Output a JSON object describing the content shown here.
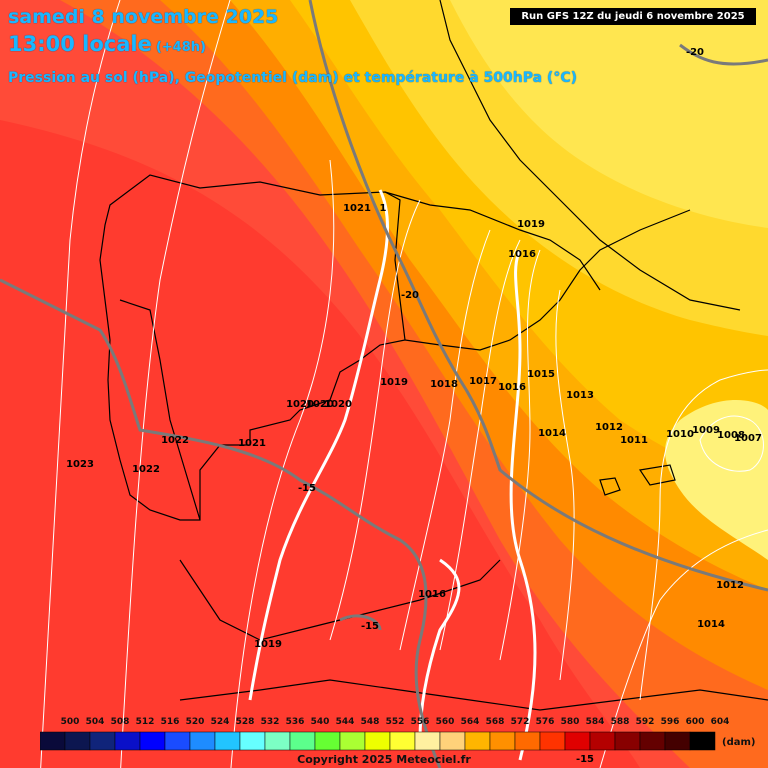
{
  "header": {
    "date": "samedi 8 novembre 2025",
    "time": "13:00 locale",
    "step": "(+48h)",
    "subtitle": "Pression au sol (hPa), Geopotentiel (dam) et température à 500hPa (°C)",
    "run": "Run GFS 12Z du jeudi 6 novembre 2025"
  },
  "pressure_labels": [
    "1021",
    "1",
    "1019",
    "1016",
    "1019",
    "1018",
    "1017",
    "1016",
    "1015",
    "1013",
    "1012",
    "1011",
    "1010",
    "1009",
    "1008",
    "1007",
    "1014",
    "1020",
    "1020",
    "1020",
    "1022",
    "1021",
    "1023",
    "1022",
    "1016",
    "1019",
    "1012",
    "1014"
  ],
  "temperature_labels": [
    "-20",
    "-20",
    "-15",
    "-15",
    "-15"
  ],
  "colors": {
    "geopotential_fill": [
      "#ff3b2f",
      "#ff4b38",
      "#ff6a1e",
      "#ff8a00",
      "#ffae00",
      "#ffc400",
      "#ffd92e",
      "#ffe650",
      "#fff27a"
    ],
    "isobar": "#ffffff",
    "isotherm": "#7a7a7a",
    "coastline": "#000000"
  },
  "legend": {
    "values": [
      "500",
      "504",
      "508",
      "512",
      "516",
      "520",
      "524",
      "528",
      "532",
      "536",
      "540",
      "544",
      "548",
      "552",
      "556",
      "560",
      "564",
      "568",
      "572",
      "576",
      "580",
      "584",
      "588",
      "592",
      "596",
      "600",
      "604"
    ],
    "colors": [
      "#0a0a3a",
      "#0c1650",
      "#10247a",
      "#0a10c8",
      "#0000ff",
      "#1a4cff",
      "#1e8cff",
      "#22c4ff",
      "#66ffff",
      "#7cffc4",
      "#5cff8c",
      "#66ff33",
      "#aaff33",
      "#eeff00",
      "#ffff33",
      "#fff0a0",
      "#ffd27a",
      "#ffb500",
      "#ff9000",
      "#ff6a00",
      "#ff3300",
      "#e00000",
      "#b40000",
      "#880000",
      "#640000",
      "#440000",
      "#000000"
    ],
    "unit": "(dam)"
  },
  "copyright": "Copyright 2025 Meteociel.fr"
}
